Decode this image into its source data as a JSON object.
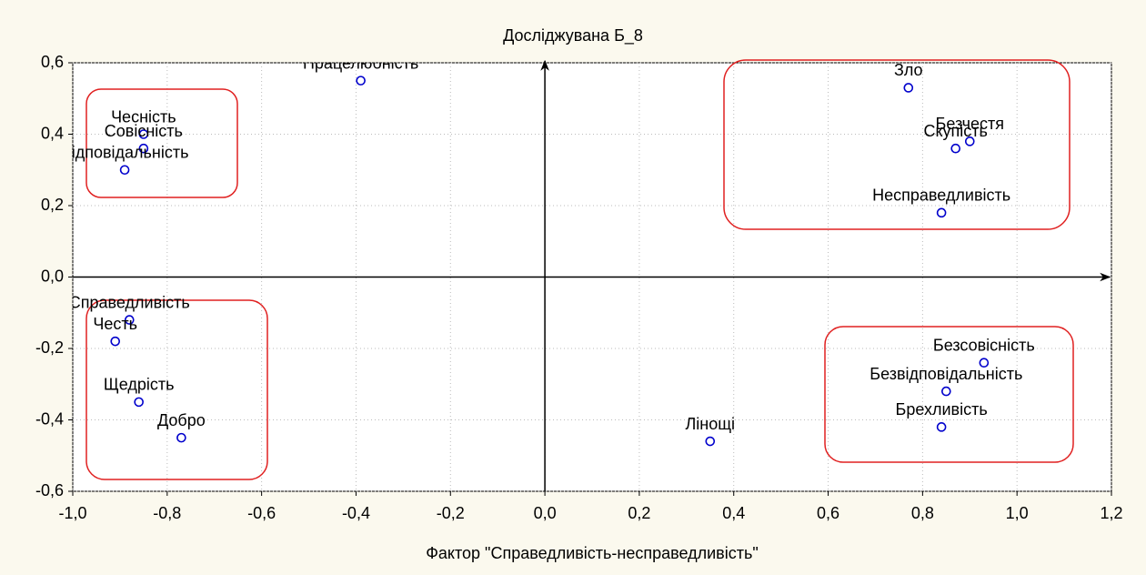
{
  "chart_data": {
    "type": "scatter",
    "title": "Досліджувана Б_8",
    "x_label": "Фактор \"Справедливість-несправедливість\"",
    "labels": [
      "Працелюбність",
      "Чесність",
      "Совісність",
      "Відповідальність",
      "Справедливість",
      "Честь",
      "Щедрість",
      "Добро",
      "Лінощі",
      "Зло",
      "Безчестя",
      "Скупість",
      "Несправедливість",
      "Безсовісність",
      "Безвідповідальність",
      "Брехливість"
    ],
    "x": [
      -0.39,
      -0.85,
      -0.85,
      -0.89,
      -0.88,
      -0.91,
      -0.86,
      -0.77,
      0.35,
      0.77,
      0.9,
      0.87,
      0.84,
      0.93,
      0.85,
      0.84
    ],
    "values": [
      0.55,
      0.4,
      0.36,
      0.3,
      -0.12,
      -0.18,
      -0.35,
      -0.45,
      -0.46,
      0.53,
      0.38,
      0.36,
      0.18,
      -0.24,
      -0.32,
      -0.42
    ],
    "color": "#0000cc",
    "xlim": [
      -1.0,
      1.2
    ],
    "xticks": [
      {
        "value": -1.0,
        "label": "-1,0"
      },
      {
        "value": -0.8,
        "label": "-0,8"
      },
      {
        "value": -0.6,
        "label": "-0,6"
      },
      {
        "value": -0.4,
        "label": "-0,4"
      },
      {
        "value": -0.2,
        "label": "-0,2"
      },
      {
        "value": 0,
        "label": "0,0"
      },
      {
        "value": 0.2,
        "label": "0,2"
      },
      {
        "value": 0.4,
        "label": "0,4"
      },
      {
        "value": 0.6,
        "label": "0,6"
      },
      {
        "value": 0.8,
        "label": "0,8"
      },
      {
        "value": 1.0,
        "label": "1,0"
      },
      {
        "value": 1.2,
        "label": "1,2"
      }
    ],
    "ylim": [
      -0.6,
      0.6
    ],
    "yticks": [
      {
        "value": -0.6,
        "label": "-0,6"
      },
      {
        "value": -0.4,
        "label": "-0,4"
      },
      {
        "value": -0.2,
        "label": "-0,2"
      },
      {
        "value": 0,
        "label": "0,0"
      },
      {
        "value": 0.2,
        "label": "0,2"
      },
      {
        "value": 0.4,
        "label": "0,4"
      },
      {
        "value": 0.6,
        "label": "0,6"
      }
    ],
    "grid": true
  }
}
